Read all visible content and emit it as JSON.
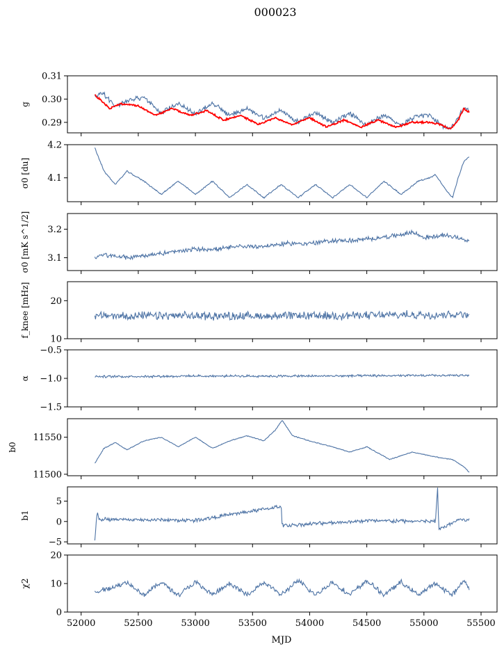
{
  "title": "000023",
  "xlabel": "MJD",
  "x_ticks": [
    "52000",
    "52500",
    "53000",
    "53500",
    "54000",
    "54500",
    "55000",
    "55500"
  ],
  "colors": {
    "series": "#4c72a4",
    "model": "#ff0000",
    "axes": "#000000"
  },
  "chart_data": [
    {
      "type": "line",
      "ylabel": "g",
      "xlim": [
        51880,
        55640
      ],
      "ylim": [
        0.2855,
        0.31
      ],
      "yticks": [
        0.29,
        0.3,
        0.31
      ],
      "ytick_labels": [
        "0.29",
        "0.30",
        "0.31"
      ],
      "series": [
        {
          "color": "#4c72a4",
          "x": [
            52120,
            52180,
            52300,
            52400,
            52550,
            52700,
            52850,
            53000,
            53150,
            53300,
            53450,
            53600,
            53750,
            53900,
            54050,
            54200,
            54350,
            54500,
            54650,
            54800,
            54950,
            55050,
            55150,
            55230,
            55300,
            55360,
            55400
          ],
          "y": [
            0.301,
            0.303,
            0.297,
            0.299,
            0.301,
            0.294,
            0.298,
            0.294,
            0.298,
            0.293,
            0.296,
            0.292,
            0.295,
            0.29,
            0.294,
            0.29,
            0.294,
            0.289,
            0.293,
            0.289,
            0.293,
            0.293,
            0.289,
            0.287,
            0.292,
            0.297,
            0.294
          ]
        },
        {
          "color": "#ff0000",
          "x": [
            52120,
            52160,
            52250,
            52350,
            52500,
            52650,
            52800,
            52950,
            53100,
            53250,
            53400,
            53550,
            53700,
            53850,
            54000,
            54150,
            54300,
            54450,
            54600,
            54750,
            54900,
            55050,
            55150,
            55230,
            55300,
            55350,
            55400
          ],
          "y": [
            0.302,
            0.3,
            0.296,
            0.298,
            0.297,
            0.293,
            0.296,
            0.293,
            0.295,
            0.291,
            0.293,
            0.289,
            0.292,
            0.289,
            0.292,
            0.288,
            0.291,
            0.288,
            0.291,
            0.288,
            0.29,
            0.29,
            0.289,
            0.287,
            0.291,
            0.296,
            0.294
          ]
        }
      ]
    },
    {
      "type": "line",
      "ylabel": "σ0 [du]",
      "xlim": [
        51880,
        55640
      ],
      "ylim": [
        4.028,
        4.2
      ],
      "yticks": [
        4.1,
        4.2
      ],
      "ytick_labels": [
        "4.1",
        "4.2"
      ],
      "series": [
        {
          "color": "#4c72a4",
          "x": [
            52120,
            52200,
            52300,
            52400,
            52550,
            52700,
            52850,
            53000,
            53150,
            53300,
            53450,
            53600,
            53750,
            53900,
            54050,
            54200,
            54350,
            54500,
            54650,
            54800,
            54950,
            55050,
            55100,
            55200,
            55250,
            55300,
            55350,
            55400
          ],
          "y": [
            4.19,
            4.12,
            4.08,
            4.12,
            4.09,
            4.05,
            4.09,
            4.05,
            4.09,
            4.04,
            4.08,
            4.04,
            4.08,
            4.04,
            4.08,
            4.04,
            4.08,
            4.04,
            4.09,
            4.05,
            4.09,
            4.1,
            4.11,
            4.06,
            4.04,
            4.1,
            4.15,
            4.165
          ]
        }
      ]
    },
    {
      "type": "line",
      "ylabel": "σ0 [mK s^1/2]",
      "xlim": [
        51880,
        55640
      ],
      "ylim": [
        3.055,
        3.255
      ],
      "yticks": [
        3.1,
        3.2
      ],
      "ytick_labels": [
        "3.1",
        "3.2"
      ],
      "series": [
        {
          "color": "#4c72a4",
          "x": [
            52120,
            52200,
            52400,
            52600,
            52800,
            53000,
            53200,
            53400,
            53600,
            53800,
            54000,
            54200,
            54400,
            54600,
            54800,
            54900,
            55000,
            55200,
            55400
          ],
          "y": [
            3.1,
            3.11,
            3.1,
            3.11,
            3.12,
            3.13,
            3.13,
            3.14,
            3.14,
            3.15,
            3.15,
            3.16,
            3.16,
            3.17,
            3.18,
            3.19,
            3.17,
            3.18,
            3.16
          ]
        }
      ]
    },
    {
      "type": "line",
      "ylabel": "f_knee [mHz]",
      "xlim": [
        51880,
        55640
      ],
      "ylim": [
        10,
        25
      ],
      "yticks": [
        10,
        20
      ],
      "ytick_labels": [
        "10",
        "20"
      ],
      "series": [
        {
          "color": "#4c72a4",
          "x": [
            52120,
            53000,
            54000,
            55000,
            55400
          ],
          "y": [
            16,
            16,
            16,
            16.3,
            16.5
          ]
        }
      ]
    },
    {
      "type": "line",
      "ylabel": "α",
      "xlim": [
        51880,
        55640
      ],
      "ylim": [
        -1.5,
        -0.5
      ],
      "yticks": [
        -1.5,
        -1.0,
        -0.5
      ],
      "ytick_labels": [
        "−1.5",
        "−1.0",
        "−0.5"
      ],
      "series": [
        {
          "color": "#4c72a4",
          "x": [
            52120,
            53000,
            54000,
            55000,
            55400
          ],
          "y": [
            -0.97,
            -0.96,
            -0.96,
            -0.95,
            -0.95
          ]
        }
      ]
    },
    {
      "type": "line",
      "ylabel": "b0",
      "xlim": [
        51880,
        55640
      ],
      "ylim": [
        11498,
        11575
      ],
      "yticks": [
        11500,
        11550
      ],
      "ytick_labels": [
        "11500",
        "11550"
      ],
      "series": [
        {
          "color": "#4c72a4",
          "x": [
            52120,
            52200,
            52300,
            52400,
            52550,
            52700,
            52850,
            53000,
            53150,
            53300,
            53450,
            53600,
            53700,
            53760,
            53850,
            54000,
            54200,
            54350,
            54500,
            54700,
            54900,
            55050,
            55150,
            55250,
            55350,
            55400
          ],
          "y": [
            11515,
            11535,
            11543,
            11533,
            11545,
            11550,
            11537,
            11550,
            11535,
            11545,
            11552,
            11545,
            11560,
            11573,
            11552,
            11545,
            11537,
            11530,
            11537,
            11520,
            11530,
            11525,
            11522,
            11520,
            11510,
            11502
          ]
        }
      ]
    },
    {
      "type": "line",
      "ylabel": "b1",
      "xlim": [
        51880,
        55640
      ],
      "ylim": [
        -5.5,
        8.5
      ],
      "yticks": [
        -5,
        0,
        5
      ],
      "ytick_labels": [
        "−5",
        "0",
        "5"
      ],
      "series": [
        {
          "color": "#4c72a4",
          "x": [
            52120,
            52140,
            52160,
            53000,
            53750,
            53760,
            54500,
            55100,
            55120,
            55130,
            55300,
            55400
          ],
          "y": [
            -4.5,
            2.5,
            0.5,
            0.3,
            3.7,
            -1.0,
            0.2,
            0.0,
            8.0,
            -2.0,
            0.5,
            0.3
          ]
        }
      ]
    },
    {
      "type": "line",
      "ylabel": "χ2",
      "xlim": [
        51880,
        55640
      ],
      "ylim": [
        0,
        20
      ],
      "yticks": [
        0,
        10,
        20
      ],
      "ytick_labels": [
        "0",
        "10",
        "20"
      ],
      "series": [
        {
          "color": "#4c72a4",
          "x": [
            52120,
            52300,
            52400,
            52550,
            52700,
            52850,
            53000,
            53150,
            53300,
            53450,
            53600,
            53750,
            53900,
            54050,
            54200,
            54350,
            54500,
            54650,
            54800,
            54950,
            55100,
            55250,
            55350,
            55400
          ],
          "y": [
            7,
            9,
            10.5,
            6,
            10.5,
            6,
            10.5,
            6,
            10,
            6,
            10.5,
            6,
            11,
            6,
            10.5,
            6,
            11,
            6,
            10.5,
            6,
            10,
            6,
            11,
            8
          ]
        }
      ]
    }
  ]
}
